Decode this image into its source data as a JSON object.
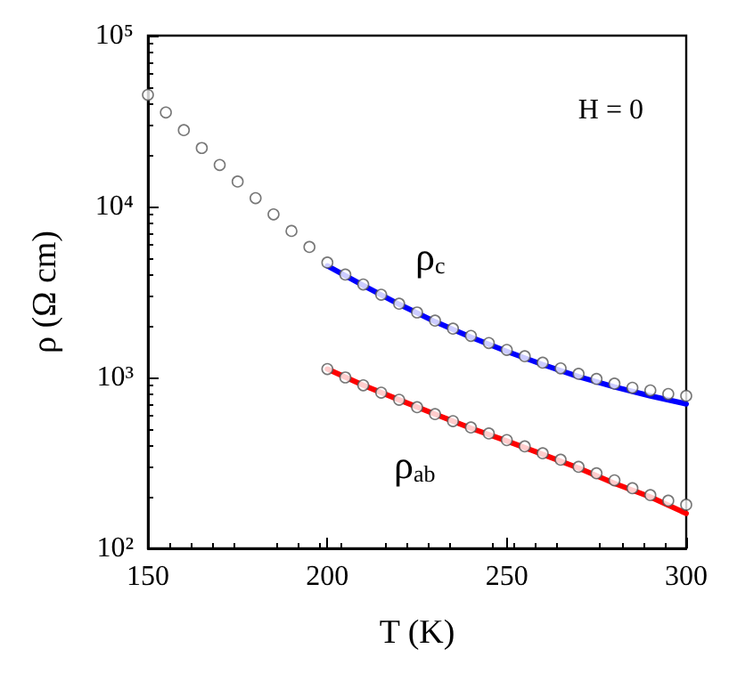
{
  "chart_data": {
    "type": "scatter",
    "xlabel": "T (K)",
    "ylabel": "ρ (Ω cm)",
    "log": "y",
    "xlim": [
      150,
      300
    ],
    "xticks": [
      150,
      200,
      250,
      300
    ],
    "ylim": [
      100,
      100000
    ],
    "yticks": [
      {
        "value": 100,
        "label": "10²"
      },
      {
        "value": 1000,
        "label": "10³"
      },
      {
        "value": 10000,
        "label": "10⁴"
      },
      {
        "value": 100000,
        "label": "10⁵"
      }
    ],
    "annotations": [
      "H = 0",
      "ρ$_{c}$",
      "ρ$_{ab}$"
    ],
    "series": [
      {
        "type": "scatter",
        "marker": "circle",
        "color": "#555555",
        "x": [
          150,
          155,
          160,
          165,
          170,
          175,
          180,
          185,
          190,
          195,
          200,
          205,
          210,
          215,
          220,
          225,
          230,
          235,
          240,
          245,
          250,
          255,
          260,
          265,
          270,
          275,
          280,
          285,
          290,
          295,
          300
        ],
        "values": [
          45000,
          35500,
          28000,
          22000,
          17500,
          14000,
          11200,
          9000,
          7200,
          5800,
          4700,
          4000,
          3500,
          3050,
          2700,
          2400,
          2150,
          1930,
          1750,
          1590,
          1450,
          1330,
          1220,
          1130,
          1050,
          980,
          920,
          870,
          840,
          800,
          780
        ]
      },
      {
        "type": "scatter",
        "marker": "circle",
        "color": "#555555",
        "x": [
          200,
          205,
          210,
          215,
          220,
          225,
          230,
          235,
          240,
          245,
          250,
          255,
          260,
          265,
          270,
          275,
          280,
          285,
          290,
          295,
          300
        ],
        "values": [
          1120,
          1000,
          900,
          815,
          740,
          670,
          610,
          555,
          510,
          470,
          430,
          395,
          360,
          330,
          300,
          275,
          250,
          225,
          205,
          190,
          180
        ]
      },
      {
        "type": "line",
        "marker": "none",
        "color": "#0000ff",
        "x": [
          200,
          210,
          220,
          230,
          240,
          250,
          260,
          270,
          280,
          290,
          300
        ],
        "values": [
          4500,
          3450,
          2680,
          2120,
          1720,
          1420,
          1190,
          1010,
          880,
          780,
          700
        ]
      },
      {
        "type": "line",
        "marker": "none",
        "color": "#ff0000",
        "x": [
          200,
          210,
          220,
          230,
          240,
          250,
          260,
          270,
          280,
          290,
          300
        ],
        "values": [
          1120,
          900,
          740,
          610,
          505,
          425,
          355,
          295,
          240,
          200,
          160
        ]
      }
    ]
  }
}
